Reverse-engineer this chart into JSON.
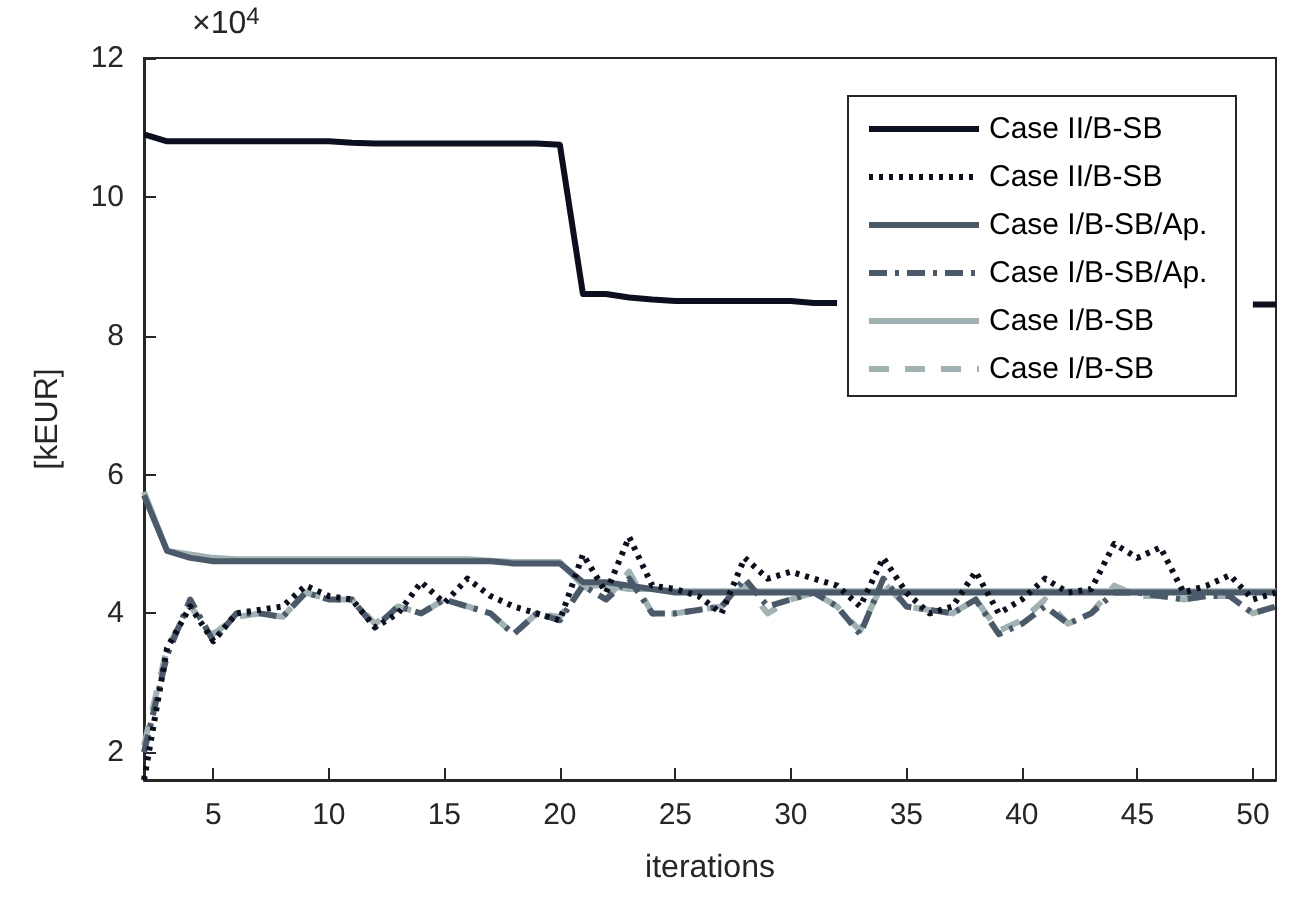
{
  "chart_data": {
    "type": "line",
    "xlabel": "iterations",
    "ylabel": "[kEUR]",
    "annotations": [
      "×10$^{4}$"
    ],
    "xlim": [
      2,
      51
    ],
    "xticks": [
      5,
      10,
      15,
      20,
      25,
      30,
      35,
      40,
      45,
      50
    ],
    "ylim": [
      1.6,
      12
    ],
    "yticks": [
      2,
      4,
      6,
      8,
      10,
      12
    ],
    "grid": false,
    "legend": "top right",
    "marker": "none",
    "x": [
      2,
      3,
      4,
      5,
      6,
      7,
      8,
      9,
      10,
      11,
      12,
      13,
      14,
      15,
      16,
      17,
      18,
      19,
      20,
      21,
      22,
      23,
      24,
      25,
      26,
      27,
      28,
      29,
      30,
      31,
      32,
      33,
      34,
      35,
      36,
      37,
      38,
      39,
      40,
      41,
      42,
      43,
      44,
      45,
      46,
      47,
      48,
      49,
      50,
      51
    ],
    "series": [
      {
        "name": "Case II/B-SB",
        "color": "#0b0f1f",
        "line_style": "solid",
        "values": [
          10.9,
          10.8,
          10.8,
          10.8,
          10.8,
          10.8,
          10.8,
          10.8,
          10.8,
          10.78,
          10.77,
          10.77,
          10.77,
          10.77,
          10.77,
          10.77,
          10.77,
          10.77,
          10.75,
          8.6,
          8.6,
          8.55,
          8.52,
          8.5,
          8.5,
          8.5,
          8.5,
          8.5,
          8.5,
          8.47,
          8.47,
          null,
          null,
          null,
          null,
          null,
          null,
          null,
          null,
          null,
          null,
          null,
          null,
          null,
          null,
          null,
          null,
          null,
          8.45,
          8.45
        ]
      },
      {
        "name": "Case II/B-SB",
        "color": "#0b0f1f",
        "line_style": "dotted",
        "values": [
          1.6,
          3.5,
          4.1,
          3.6,
          4.0,
          4.05,
          4.1,
          4.4,
          4.25,
          4.2,
          3.8,
          4.0,
          4.45,
          4.15,
          4.5,
          4.25,
          4.1,
          4.0,
          3.9,
          4.85,
          4.3,
          5.1,
          4.4,
          4.35,
          4.25,
          4.0,
          4.8,
          4.5,
          4.6,
          4.5,
          4.4,
          4.1,
          4.8,
          4.3,
          4.0,
          4.1,
          4.6,
          4.0,
          4.2,
          4.5,
          4.3,
          4.35,
          5.0,
          4.8,
          4.95,
          4.3,
          4.4,
          4.55,
          4.2,
          4.3
        ]
      },
      {
        "name": "Case I/B-SB/Ap.",
        "color": "#4a5a6a",
        "line_style": "solid",
        "values": [
          5.7,
          4.9,
          4.8,
          4.75,
          4.75,
          4.75,
          4.75,
          4.75,
          4.75,
          4.75,
          4.75,
          4.75,
          4.75,
          4.75,
          4.75,
          4.75,
          4.72,
          4.72,
          4.72,
          4.45,
          4.45,
          4.4,
          4.35,
          4.3,
          4.3,
          4.3,
          4.3,
          4.3,
          4.3,
          4.3,
          4.3,
          4.3,
          4.3,
          4.3,
          4.3,
          4.3,
          4.3,
          4.3,
          4.3,
          4.3,
          4.3,
          4.3,
          4.3,
          4.3,
          4.3,
          4.3,
          4.3,
          4.3,
          4.3,
          4.3
        ]
      },
      {
        "name": "Case I/B-SB/Ap.",
        "color": "#4a5a6a",
        "line_style": "dashdot",
        "values": [
          2.0,
          3.4,
          4.2,
          3.6,
          4.0,
          4.0,
          3.95,
          4.3,
          4.2,
          4.2,
          3.8,
          4.1,
          4.0,
          4.2,
          4.1,
          4.0,
          3.7,
          4.0,
          3.9,
          4.4,
          4.2,
          4.5,
          4.0,
          4.0,
          4.05,
          4.1,
          4.5,
          4.1,
          4.2,
          4.3,
          4.1,
          3.7,
          4.5,
          4.1,
          4.05,
          4.0,
          4.2,
          3.7,
          3.85,
          4.1,
          3.85,
          4.0,
          4.3,
          4.3,
          4.25,
          4.2,
          4.25,
          4.25,
          4.0,
          4.1
        ]
      },
      {
        "name": "Case I/B-SB",
        "color": "#a0b2b2",
        "line_style": "solid",
        "values": [
          5.75,
          4.9,
          4.85,
          4.8,
          4.78,
          4.78,
          4.78,
          4.78,
          4.78,
          4.78,
          4.78,
          4.78,
          4.78,
          4.78,
          4.78,
          4.76,
          4.74,
          4.74,
          4.74,
          4.4,
          4.4,
          4.35,
          4.35,
          4.32,
          4.32,
          4.32,
          4.32,
          4.32,
          4.32,
          4.32,
          4.32,
          4.32,
          4.32,
          4.32,
          4.32,
          4.32,
          4.32,
          4.32,
          4.32,
          4.32,
          4.32,
          4.32,
          4.32,
          4.32,
          4.32,
          4.32,
          4.32,
          4.32,
          4.32,
          4.32
        ]
      },
      {
        "name": "Case I/B-SB",
        "color": "#a0b2b2",
        "line_style": "dashed",
        "values": [
          2.1,
          3.5,
          4.1,
          3.7,
          3.95,
          4.0,
          3.95,
          4.3,
          4.2,
          4.2,
          3.85,
          4.1,
          4.0,
          4.2,
          4.1,
          4.0,
          3.7,
          4.0,
          3.95,
          4.4,
          4.2,
          4.6,
          4.0,
          4.0,
          4.05,
          4.1,
          4.4,
          4.0,
          4.2,
          4.3,
          4.1,
          3.75,
          4.45,
          4.1,
          4.05,
          4.0,
          4.2,
          3.75,
          3.9,
          4.2,
          3.85,
          4.0,
          4.4,
          4.25,
          4.25,
          4.2,
          4.25,
          4.25,
          4.0,
          4.1
        ]
      }
    ]
  }
}
